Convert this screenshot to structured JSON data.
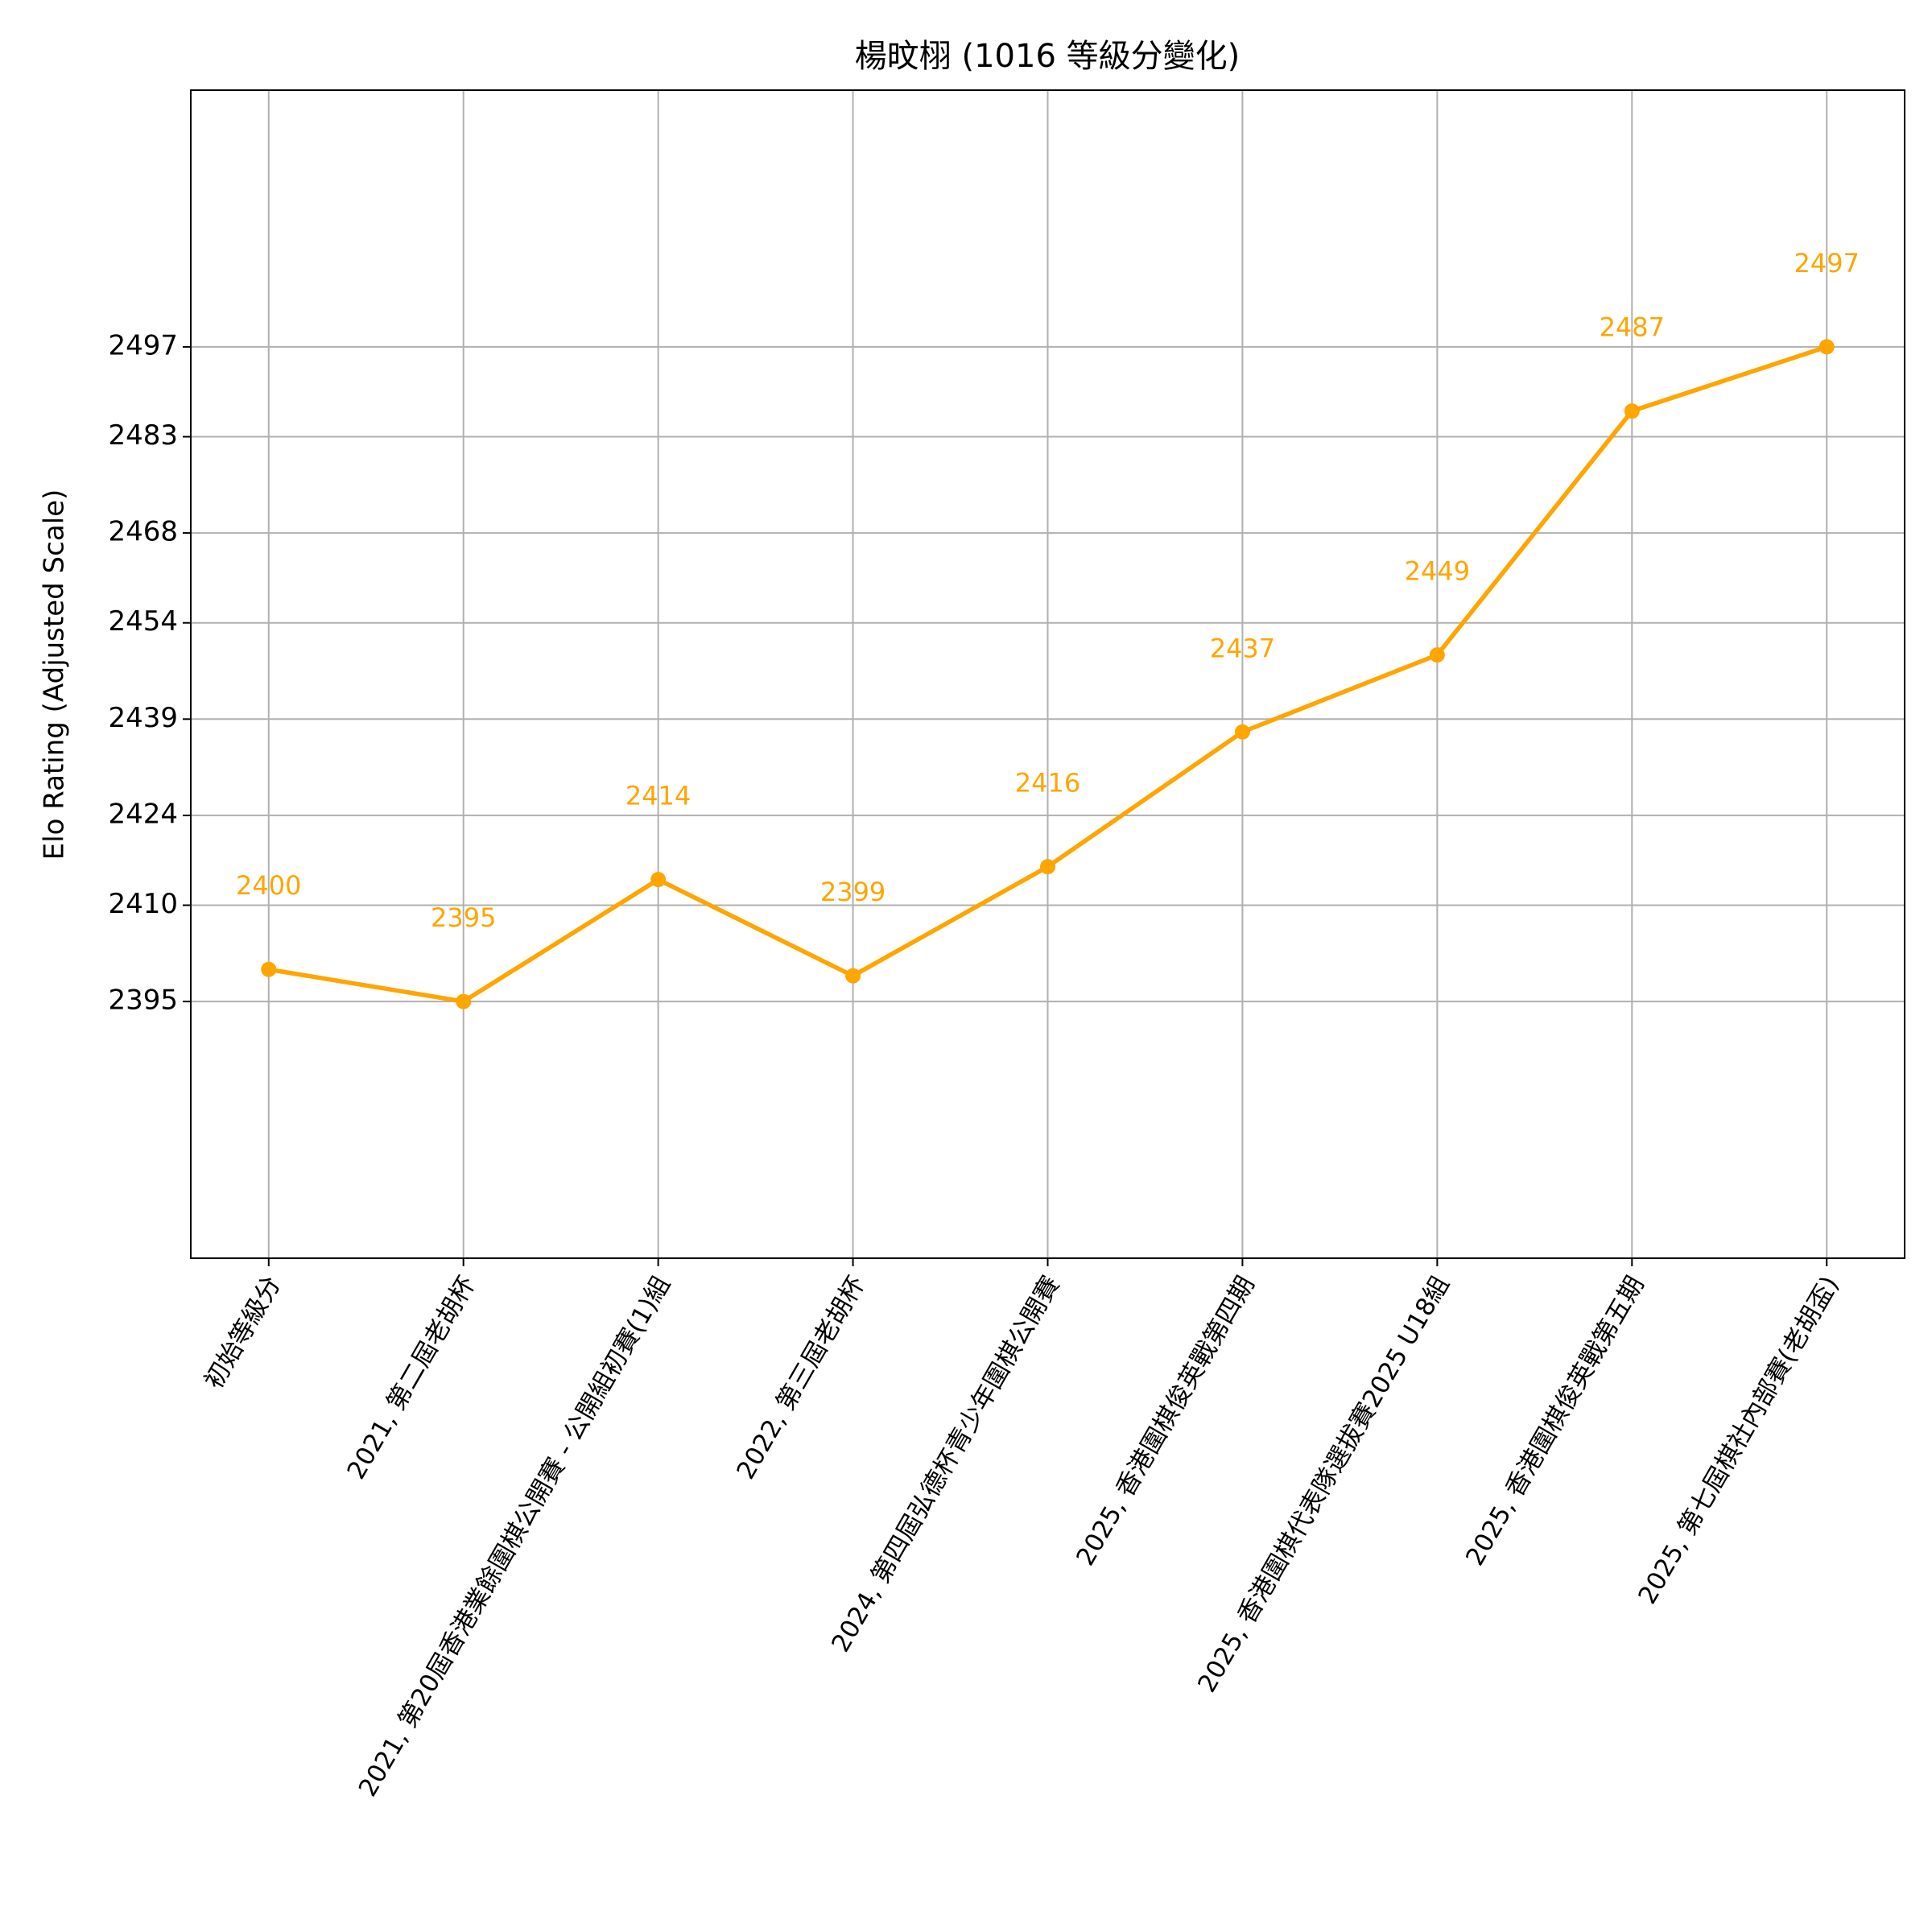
{
  "chart_data": {
    "type": "line",
    "title": "楊旼栩 (1016 等級分變化)",
    "y_label": "Elo Rating (Adjusted Scale)",
    "categories": [
      "初始等級分",
      "2021, 第二屆老胡杯",
      "2021, 第20屆香港業餘圍棋公開賽 - 公開組初賽(1)組",
      "2022, 第三屆老胡杯",
      "2024, 第四屆弘德杯青少年圍棋公開賽",
      "2025, 香港圍棋俊英戰第四期",
      "2025, 香港圍棋代表隊選拔賽2025 U18組",
      "2025, 香港圍棋俊英戰第五期",
      "2025, 第七屆棋社內部賽(老胡盃)"
    ],
    "series": [
      {
        "color": "#ffa500",
        "values": [
          2400,
          2395,
          2414,
          2399,
          2416,
          2437,
          2449,
          2487,
          2497
        ]
      }
    ],
    "ylim": [
      2355,
      2537
    ],
    "yticks": [
      2395,
      2410,
      2424,
      2439,
      2454,
      2468,
      2483,
      2497
    ],
    "grid": true
  }
}
